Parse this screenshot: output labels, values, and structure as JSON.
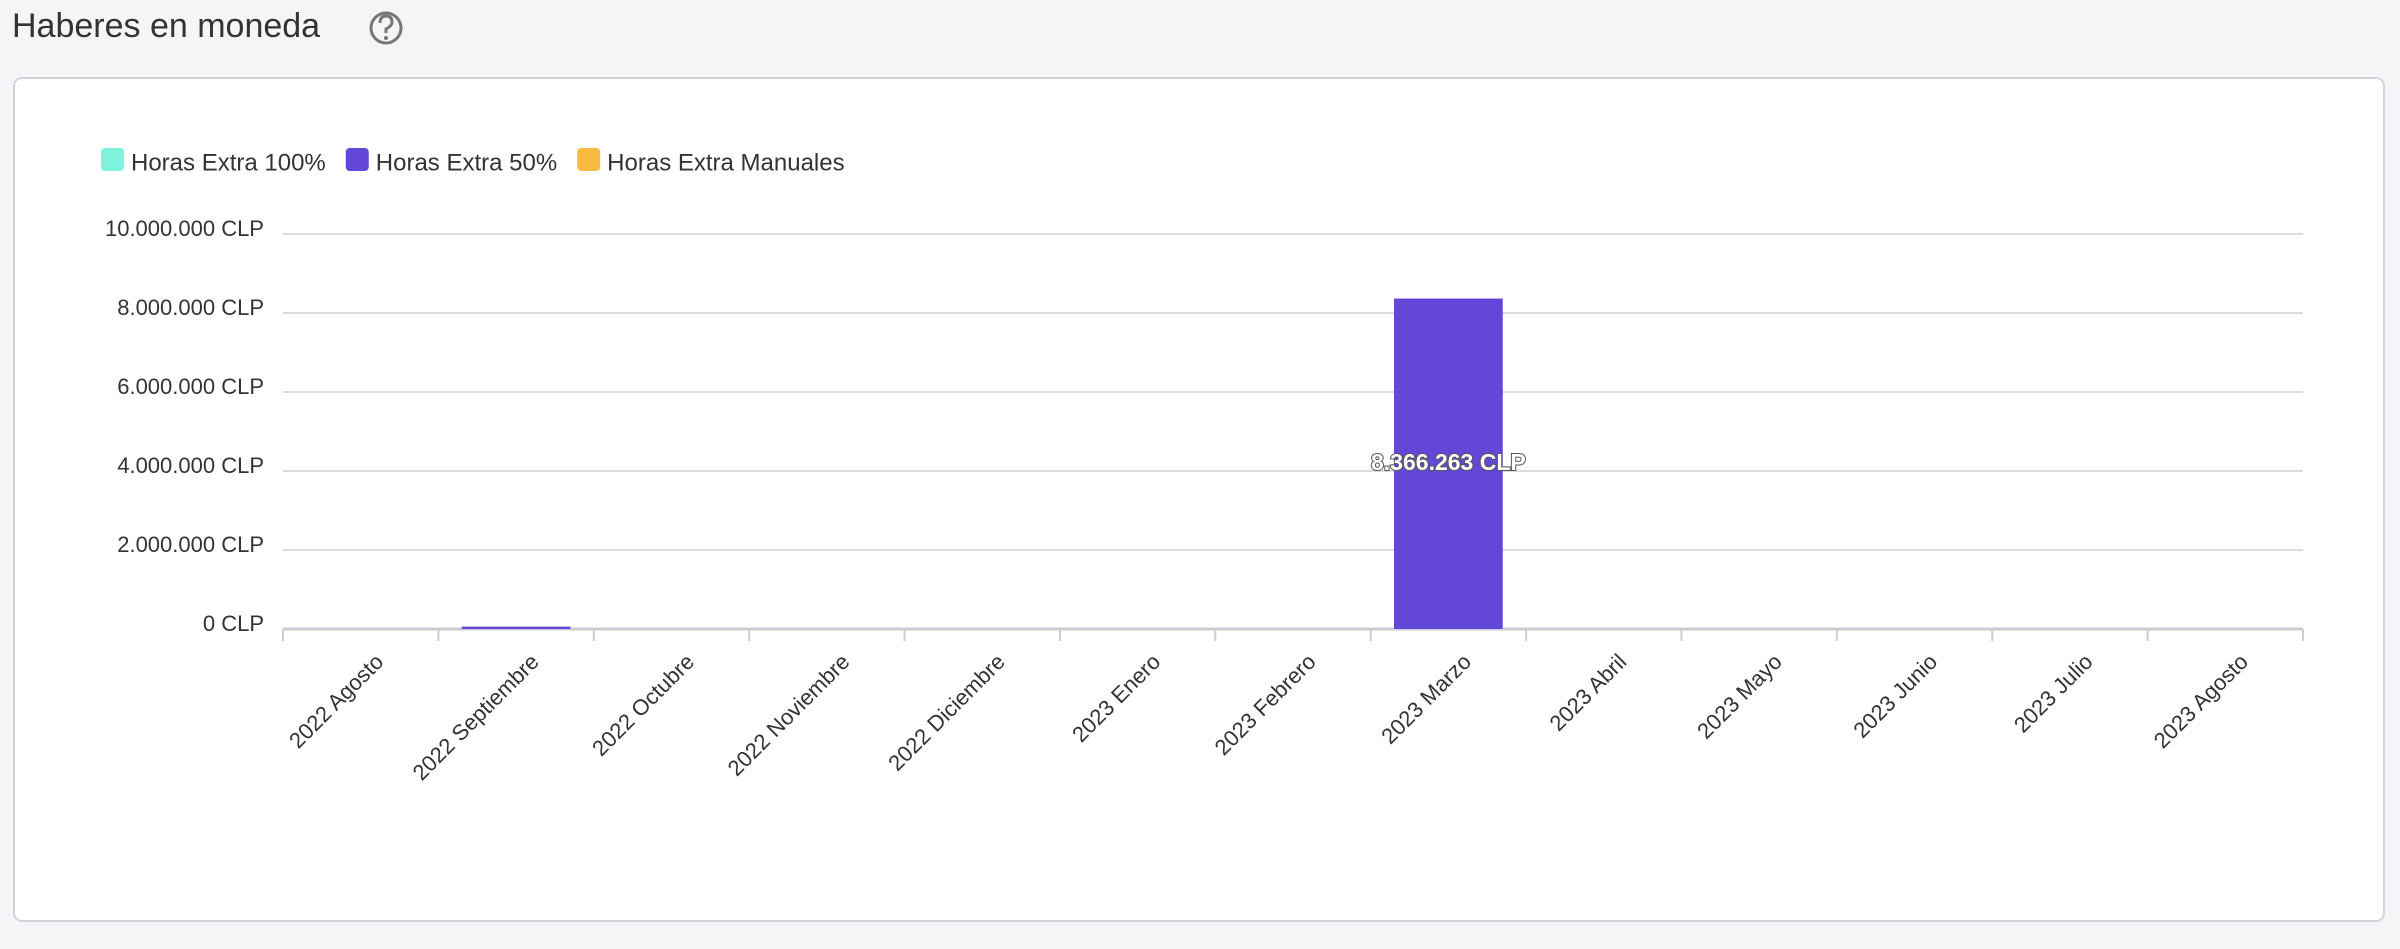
{
  "page_title": "Haberes en moneda",
  "chart_data": {
    "type": "bar",
    "stacked": true,
    "categories": [
      "2022 Agosto",
      "2022 Septiembre",
      "2022 Octubre",
      "2022 Noviembre",
      "2022 Diciembre",
      "2023 Enero",
      "2023 Febrero",
      "2023 Marzo",
      "2023 Abril",
      "2023 Mayo",
      "2023 Junio",
      "2023 Julio",
      "2023 Agosto"
    ],
    "series": [
      {
        "name": "Horas Extra 100%",
        "color": "#7ef3dc",
        "values": [
          0,
          0,
          0,
          0,
          0,
          0,
          0,
          0,
          0,
          0,
          0,
          0,
          0
        ]
      },
      {
        "name": "Horas Extra 50%",
        "color": "#6247d8",
        "values": [
          0,
          60000,
          0,
          0,
          0,
          0,
          0,
          8366263,
          0,
          0,
          0,
          0,
          0
        ],
        "value_labels": [
          null,
          null,
          null,
          null,
          null,
          null,
          null,
          "8.366.263 CLP",
          null,
          null,
          null,
          null,
          null
        ]
      },
      {
        "name": "Horas Extra Manuales",
        "color": "#f8bb3f",
        "values": [
          0,
          0,
          0,
          0,
          0,
          0,
          0,
          0,
          0,
          0,
          0,
          0,
          0
        ]
      }
    ],
    "ylim": [
      0,
      10000000
    ],
    "yticks": [
      {
        "value": 0,
        "label": "0 CLP"
      },
      {
        "value": 2000000,
        "label": "2.000.000 CLP"
      },
      {
        "value": 4000000,
        "label": "4.000.000 CLP"
      },
      {
        "value": 6000000,
        "label": "6.000.000 CLP"
      },
      {
        "value": 8000000,
        "label": "8.000.000 CLP"
      },
      {
        "value": 10000000,
        "label": "10.000.000 CLP"
      }
    ],
    "grid": true,
    "legend": "top-left"
  }
}
